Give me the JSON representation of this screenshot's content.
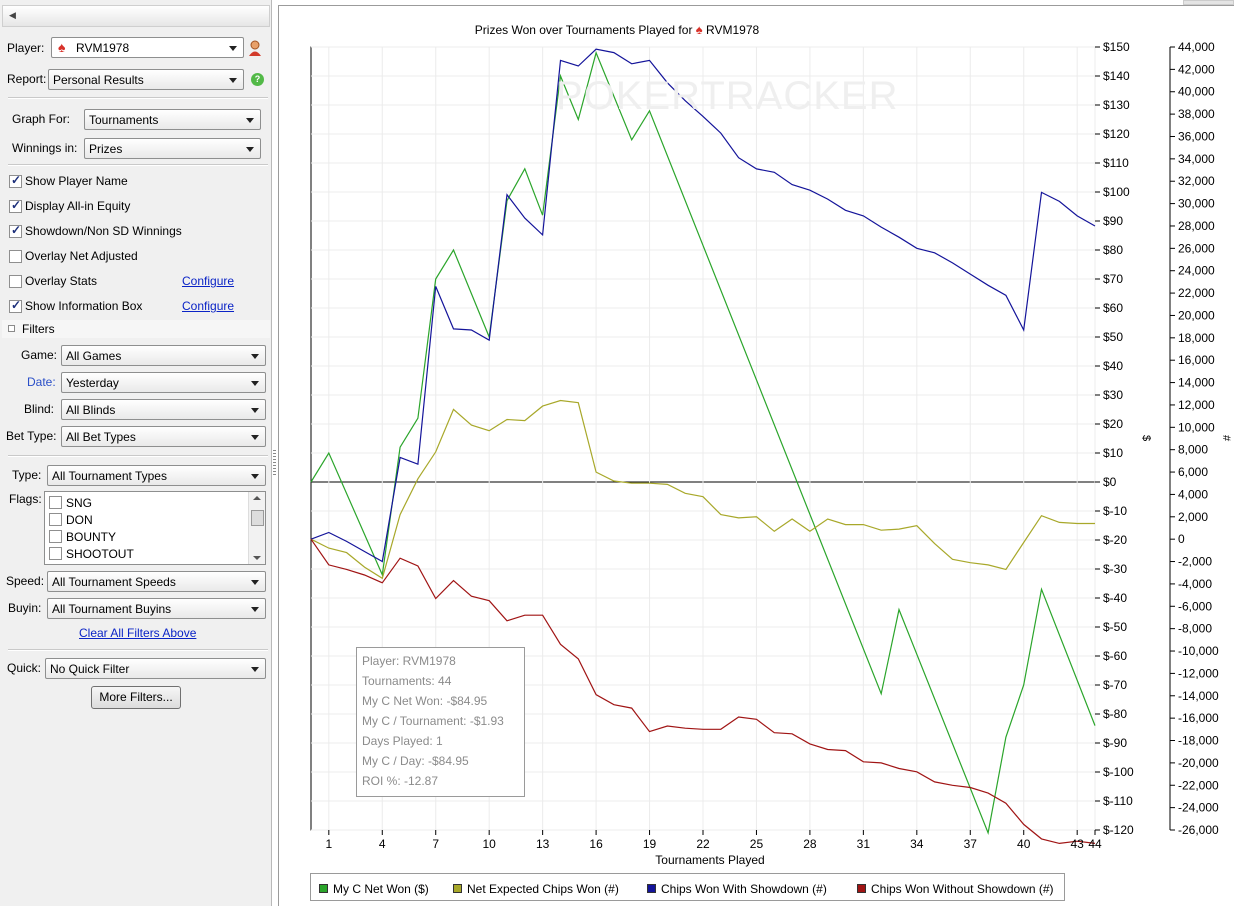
{
  "sidebar": {
    "player_label": "Player:",
    "player_value": "RVM1978",
    "report_label": "Report:",
    "report_value": "Personal Results",
    "graph_for_label": "Graph For:",
    "graph_for_value": "Tournaments",
    "winnings_in_label": "Winnings in:",
    "winnings_in_value": "Prizes",
    "options": [
      {
        "label": "Show Player Name",
        "checked": true
      },
      {
        "label": "Display All-in Equity",
        "checked": true
      },
      {
        "label": "Showdown/Non SD Winnings",
        "checked": true
      },
      {
        "label": "Overlay Net Adjusted",
        "checked": false
      },
      {
        "label": "Overlay Stats",
        "checked": false
      },
      {
        "label": "Show Information Box",
        "checked": true
      }
    ],
    "configure_label": "Configure",
    "filters_header": "Filters",
    "filters": {
      "game_label": "Game:",
      "game_value": "All Games",
      "date_label": "Date:",
      "date_value": "Yesterday",
      "blind_label": "Blind:",
      "blind_value": "All Blinds",
      "bet_type_label": "Bet Type:",
      "bet_type_value": "All Bet Types",
      "type_label": "Type:",
      "type_value": "All Tournament Types",
      "flags_label": "Flags:",
      "flags": [
        "SNG",
        "DON",
        "BOUNTY",
        "SHOOTOUT"
      ],
      "speed_label": "Speed:",
      "speed_value": "All Tournament Speeds",
      "buyin_label": "Buyin:",
      "buyin_value": "All Tournament Buyins",
      "clear_label": "Clear All Filters Above",
      "quick_label": "Quick:",
      "quick_value": "No Quick Filter",
      "more_filters_label": "More Filters..."
    }
  },
  "chart": {
    "watermark": "POKERTRACKER",
    "info_box": [
      "Player: RVM1978",
      "Tournaments: 44",
      "My C Net Won: -$84.95",
      "My C / Tournament: -$1.93",
      "Days Played: 1",
      "My C / Day: -$84.95",
      "ROI %: -12.87"
    ],
    "legend": [
      {
        "name": "My C Net Won ($)",
        "color": "#2ba52b"
      },
      {
        "name": "Net Expected Chips Won (#)",
        "color": "#a8a82a"
      },
      {
        "name": "Chips Won With Showdown (#)",
        "color": "#14149a"
      },
      {
        "name": "Chips Won Without Showdown (#)",
        "color": "#a01414"
      }
    ]
  },
  "chart_data": {
    "type": "line",
    "title": "Prizes Won over Tournaments Played for",
    "title_player": "RVM1978",
    "xlabel": "Tournaments Played",
    "ylabel_left_dollars": "$",
    "ylabel_right_chips": "#",
    "x_ticks": [
      1,
      4,
      7,
      10,
      13,
      16,
      19,
      22,
      25,
      28,
      31,
      34,
      37,
      40,
      43,
      44
    ],
    "x_range": [
      0,
      44
    ],
    "y_dollar_range": [
      -120,
      150
    ],
    "y_dollar_ticks": [
      "$150",
      "$140",
      "$130",
      "$120",
      "$110",
      "$100",
      "$90",
      "$80",
      "$70",
      "$60",
      "$50",
      "$40",
      "$30",
      "$20",
      "$10",
      "$0",
      "$-10",
      "$-20",
      "$-30",
      "$-40",
      "$-50",
      "$-60",
      "$-70",
      "$-80",
      "$-90",
      "$-100",
      "$-110",
      "$-120"
    ],
    "y_chip_range": [
      -26000,
      44000
    ],
    "y_chip_ticks": [
      "44,000",
      "42,000",
      "40,000",
      "38,000",
      "36,000",
      "34,000",
      "32,000",
      "30,000",
      "28,000",
      "26,000",
      "24,000",
      "22,000",
      "20,000",
      "18,000",
      "16,000",
      "14,000",
      "12,000",
      "10,000",
      "8,000",
      "6,000",
      "4,000",
      "2,000",
      "0",
      "-2,000",
      "-4,000",
      "-6,000",
      "-8,000",
      "-10,000",
      "-12,000",
      "-14,000",
      "-16,000",
      "-18,000",
      "-20,000",
      "-22,000",
      "-24,000",
      "-26,000"
    ],
    "series": [
      {
        "name": "My C Net Won ($)",
        "axis": "dollar",
        "color": "#2ba52b",
        "x": [
          0,
          1,
          4,
          5,
          6,
          7,
          8,
          10,
          11,
          12,
          13,
          14,
          15,
          16,
          18,
          19,
          32,
          33,
          38,
          39,
          40,
          41,
          44
        ],
        "values": [
          0,
          10,
          -32,
          12,
          22,
          70,
          80,
          50,
          97,
          108,
          92,
          140,
          125,
          148,
          118,
          128,
          -73,
          -44,
          -121,
          -88,
          -70,
          -37,
          -84
        ]
      },
      {
        "name": "Net Expected Chips Won (#)",
        "axis": "chip",
        "color": "#a8a82a",
        "x": [
          0,
          1,
          2,
          3,
          4,
          5,
          6,
          7,
          8,
          9,
          10,
          11,
          12,
          13,
          14,
          15,
          16,
          17,
          18,
          19,
          20,
          21,
          22,
          23,
          24,
          25,
          26,
          27,
          28,
          29,
          30,
          31,
          32,
          33,
          34,
          35,
          36,
          37,
          38,
          39,
          40,
          41,
          42,
          43,
          44
        ],
        "values": [
          0,
          -800,
          -1200,
          -2500,
          -3500,
          2200,
          5400,
          7800,
          11600,
          10200,
          9700,
          10700,
          10600,
          11900,
          12400,
          12200,
          6000,
          5200,
          5000,
          5000,
          4900,
          4100,
          3800,
          2200,
          1900,
          2000,
          700,
          1800,
          700,
          1800,
          1300,
          1300,
          800,
          900,
          1200,
          -400,
          -1800,
          -2100,
          -2300,
          -2700,
          -300,
          2100,
          1500,
          1400,
          1400
        ]
      },
      {
        "name": "Chips Won With Showdown (#)",
        "axis": "chip",
        "color": "#14149a",
        "x": [
          0,
          1,
          2,
          3,
          4,
          5,
          6,
          7,
          8,
          9,
          10,
          11,
          12,
          13,
          14,
          15,
          16,
          17,
          18,
          19,
          20,
          21,
          22,
          23,
          24,
          25,
          26,
          27,
          28,
          29,
          30,
          31,
          32,
          33,
          34,
          35,
          36,
          37,
          38,
          39,
          40,
          41,
          42,
          43,
          44
        ],
        "values": [
          0,
          600,
          -200,
          -1100,
          -2000,
          7300,
          6700,
          22600,
          18800,
          18700,
          17800,
          30800,
          28700,
          27200,
          42800,
          42300,
          43800,
          43500,
          42500,
          42800,
          40800,
          39200,
          37800,
          36300,
          34100,
          33100,
          32800,
          31700,
          31200,
          30400,
          29400,
          28900,
          27900,
          27000,
          26000,
          25600,
          24700,
          23700,
          22700,
          21800,
          18700,
          31000,
          30200,
          28900,
          28000
        ]
      },
      {
        "name": "Chips Won Without Showdown (#)",
        "axis": "chip",
        "color": "#a01414",
        "x": [
          0,
          1,
          2,
          3,
          4,
          5,
          6,
          7,
          8,
          9,
          10,
          11,
          12,
          13,
          14,
          15,
          16,
          17,
          18,
          19,
          20,
          21,
          22,
          23,
          24,
          25,
          26,
          27,
          28,
          29,
          30,
          31,
          32,
          33,
          34,
          35,
          36,
          37,
          38,
          39,
          40,
          41,
          42,
          43,
          44
        ],
        "values": [
          0,
          -2300,
          -2700,
          -3200,
          -3900,
          -1700,
          -2400,
          -5300,
          -3700,
          -5100,
          -5500,
          -7300,
          -6800,
          -6800,
          -9400,
          -10700,
          -13900,
          -14800,
          -15100,
          -17200,
          -16700,
          -16900,
          -17000,
          -17000,
          -15900,
          -16100,
          -17300,
          -17400,
          -18300,
          -18800,
          -18900,
          -19900,
          -20000,
          -20500,
          -20800,
          -21700,
          -22000,
          -22200,
          -22700,
          -23600,
          -25500,
          -26800,
          -27200,
          -27000,
          -27200
        ]
      }
    ],
    "grid": true,
    "legend_position": "bottom"
  }
}
